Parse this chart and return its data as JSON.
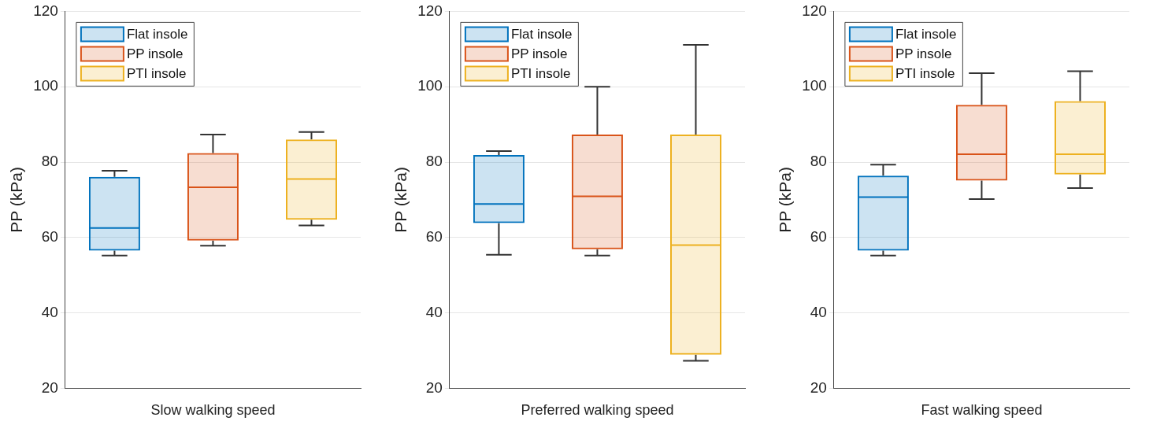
{
  "chart_data": [
    {
      "type": "box",
      "categories": [
        null,
        "Slow walking speed",
        null
      ],
      "ylabel": "PP (kPa)",
      "ylim": [
        20,
        120
      ],
      "yticks": [
        20,
        40,
        60,
        80,
        100,
        120
      ],
      "grid": "y",
      "legend": "top left",
      "series": [
        {
          "name": "Flat insole",
          "color": "#0072bd",
          "boxes": [
            {
              "low": 55.2,
              "q1": 56.5,
              "median": 62.5,
              "q3": 76.1,
              "high": 77.7
            },
            null,
            null
          ]
        },
        {
          "name": "PP insole",
          "color": "#d95319",
          "boxes": [
            null,
            {
              "low": 57.8,
              "q1": 59.2,
              "median": 73.3,
              "q3": 82.4,
              "high": 87.3
            },
            null
          ]
        },
        {
          "name": "PTI insole",
          "color": "#edb120",
          "boxes": [
            null,
            null,
            {
              "low": 63.2,
              "q1": 64.7,
              "median": 75.5,
              "q3": 86.0,
              "high": 88.0
            }
          ]
        }
      ]
    },
    {
      "type": "box",
      "categories": [
        null,
        "Preferred walking speed",
        null
      ],
      "ylabel": "PP (kPa)",
      "ylim": [
        20,
        120
      ],
      "yticks": [
        20,
        40,
        60,
        80,
        100,
        120
      ],
      "grid": "y",
      "legend": "top left",
      "series": [
        {
          "name": "Flat insole",
          "color": "#0072bd",
          "boxes": [
            {
              "low": 55.4,
              "q1": 63.8,
              "median": 68.9,
              "q3": 81.9,
              "high": 82.9
            },
            null,
            null
          ]
        },
        {
          "name": "PP insole",
          "color": "#d95319",
          "boxes": [
            null,
            {
              "low": 55.2,
              "q1": 56.9,
              "median": 70.9,
              "q3": 87.3,
              "high": 100.0
            },
            null
          ]
        },
        {
          "name": "PTI insole",
          "color": "#edb120",
          "boxes": [
            null,
            null,
            {
              "low": 27.3,
              "q1": 28.9,
              "median": 58.0,
              "q3": 87.3,
              "high": 111.1
            }
          ]
        }
      ]
    },
    {
      "type": "box",
      "categories": [
        null,
        "Fast walking speed",
        null
      ],
      "ylabel": "PP (kPa)",
      "ylim": [
        20,
        120
      ],
      "yticks": [
        20,
        40,
        60,
        80,
        100,
        120
      ],
      "grid": "y",
      "legend": "top left",
      "series": [
        {
          "name": "Flat insole",
          "color": "#0072bd",
          "boxes": [
            {
              "low": 55.2,
              "q1": 56.5,
              "median": 70.7,
              "q3": 76.4,
              "high": 79.3
            },
            null,
            null
          ]
        },
        {
          "name": "PP insole",
          "color": "#d95319",
          "boxes": [
            null,
            {
              "low": 70.2,
              "q1": 75.1,
              "median": 82.1,
              "q3": 95.2,
              "high": 103.6
            },
            null
          ]
        },
        {
          "name": "PTI insole",
          "color": "#edb120",
          "boxes": [
            null,
            null,
            {
              "low": 73.1,
              "q1": 76.7,
              "median": 82.1,
              "q3": 96.2,
              "high": 104.1
            }
          ]
        }
      ]
    }
  ]
}
